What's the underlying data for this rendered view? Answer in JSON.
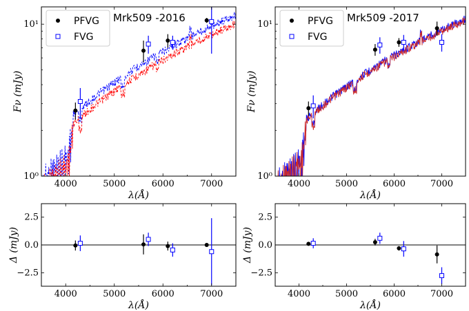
{
  "chart_data": [
    {
      "type": "line",
      "title": "Mrk509 -2016",
      "xlabel": "λ(Å)",
      "ylabel": "Fν (mJy)",
      "xlim": [
        3500,
        7500
      ],
      "ylim": [
        1,
        13
      ],
      "yscale": "log",
      "xticks": [
        "4000",
        "5000",
        "6000",
        "7000"
      ],
      "yticks": [
        {
          "v": 1,
          "label": "10⁰"
        },
        {
          "v": 10,
          "label": "10¹"
        }
      ],
      "legend": {
        "placement": "top-left",
        "entries": [
          "PFVG",
          "FVG"
        ]
      },
      "series": [
        {
          "name": "PFVG",
          "kind": "points",
          "marker": "filled-circle",
          "color": "#000000",
          "x": [
            4200,
            5600,
            6100,
            6900
          ],
          "y": [
            2.7,
            6.7,
            7.8,
            10.6
          ],
          "err": [
            0.35,
            1.1,
            0.8,
            0.4
          ]
        },
        {
          "name": "FVG",
          "kind": "points",
          "marker": "open-square",
          "color": "#0000ff",
          "x": [
            4300,
            5700,
            6200,
            7000
          ],
          "y": [
            3.1,
            7.4,
            7.6,
            10.4
          ],
          "err": [
            0.7,
            1.0,
            0.8,
            4.0
          ]
        }
      ],
      "spectra": [
        {
          "kind": "spectrum",
          "color": "#0000ff",
          "style": "dashed",
          "offset": 1.07
        },
        {
          "kind": "spectrum",
          "color": "#ff0000",
          "style": "dashed",
          "offset": 0.94
        }
      ]
    },
    {
      "type": "line",
      "title": "Mrk509 -2017",
      "xlabel": "λ(Å)",
      "ylabel": "Fν (mJy)",
      "xlim": [
        3500,
        7500
      ],
      "ylim": [
        1,
        13
      ],
      "yscale": "log",
      "xticks": [
        "4000",
        "5000",
        "6000",
        "7000"
      ],
      "yticks": [
        {
          "v": 1,
          "label": "10⁰"
        },
        {
          "v": 10,
          "label": "10¹"
        }
      ],
      "legend": {
        "placement": "top-left",
        "entries": [
          "PFVG",
          "FVG"
        ]
      },
      "series": [
        {
          "name": "PFVG",
          "kind": "points",
          "marker": "filled-circle",
          "color": "#000000",
          "x": [
            4200,
            5600,
            6100,
            6900
          ],
          "y": [
            2.8,
            6.8,
            7.6,
            9.4
          ],
          "err": [
            0.3,
            0.6,
            0.5,
            1.0
          ]
        },
        {
          "name": "FVG",
          "kind": "points",
          "marker": "open-square",
          "color": "#0000ff",
          "x": [
            4300,
            5700,
            6200,
            7000
          ],
          "y": [
            2.9,
            7.3,
            7.6,
            7.6
          ],
          "err": [
            0.5,
            0.9,
            0.9,
            1.0
          ]
        }
      ],
      "spectra": [
        {
          "kind": "spectrum",
          "color": "#0000ff",
          "style": "solid",
          "offset": 1.01
        },
        {
          "kind": "spectrum",
          "color": "#cc2a2a",
          "style": "solid",
          "offset": 0.99
        }
      ]
    },
    {
      "type": "scatter",
      "title": "",
      "xlabel": "λ(Å)",
      "ylabel": "Δ (mJy)",
      "xlim": [
        3500,
        7500
      ],
      "ylim": [
        -3.7,
        3.7
      ],
      "yscale": "linear",
      "xticks": [
        "4000",
        "5000",
        "6000",
        "7000"
      ],
      "yticks": [
        {
          "v": 2.5,
          "label": "2.5"
        },
        {
          "v": 0,
          "label": "0.0"
        },
        {
          "v": -2.5,
          "label": "−2.5"
        }
      ],
      "zero_line": true,
      "series": [
        {
          "name": "PFVG",
          "kind": "points",
          "marker": "filled-circle",
          "color": "#000000",
          "x": [
            4200,
            5600,
            6100,
            6900
          ],
          "y": [
            -0.05,
            0.05,
            -0.1,
            0.0
          ],
          "err": [
            0.45,
            0.9,
            0.4,
            0.15
          ]
        },
        {
          "name": "FVG",
          "kind": "points",
          "marker": "open-square",
          "color": "#0000ff",
          "x": [
            4300,
            5700,
            6200,
            7000
          ],
          "y": [
            0.15,
            0.5,
            -0.45,
            -0.6
          ],
          "err": [
            0.7,
            0.6,
            0.6,
            3.0
          ]
        }
      ]
    },
    {
      "type": "scatter",
      "title": "",
      "xlabel": "λ(Å)",
      "ylabel": "Δ (mJy)",
      "xlim": [
        3500,
        7500
      ],
      "ylim": [
        -3.7,
        3.7
      ],
      "yscale": "linear",
      "xticks": [
        "4000",
        "5000",
        "6000",
        "7000"
      ],
      "yticks": [
        {
          "v": 2.5,
          "label": "2.5"
        },
        {
          "v": 0,
          "label": "0.0"
        },
        {
          "v": -2.5,
          "label": "−2.5"
        }
      ],
      "zero_line": true,
      "series": [
        {
          "name": "PFVG",
          "kind": "points",
          "marker": "filled-circle",
          "color": "#000000",
          "x": [
            4200,
            5600,
            6100,
            6900
          ],
          "y": [
            0.1,
            0.25,
            -0.3,
            -0.85
          ],
          "err": [
            0.15,
            0.3,
            0.2,
            0.8
          ]
        },
        {
          "name": "FVG",
          "kind": "points",
          "marker": "open-square",
          "color": "#0000ff",
          "x": [
            4300,
            5700,
            6200,
            7000
          ],
          "y": [
            0.15,
            0.6,
            -0.35,
            -2.75
          ],
          "err": [
            0.45,
            0.5,
            0.7,
            0.75
          ]
        }
      ]
    }
  ]
}
